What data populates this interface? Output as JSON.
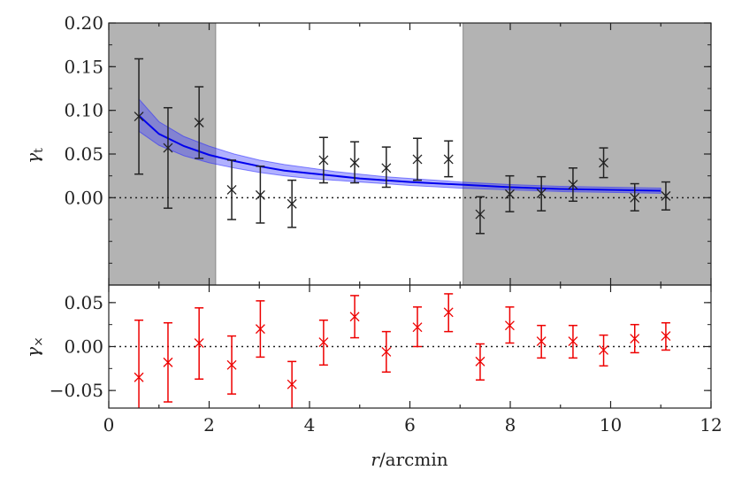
{
  "chart_data": [
    {
      "type": "scatter",
      "panel": "upper",
      "ylabel": "γt",
      "xlabel": "",
      "xlim": [
        0,
        12
      ],
      "ylim": [
        -0.1,
        0.2
      ],
      "yticks": [
        0.0,
        0.05,
        0.1,
        0.15,
        0.2
      ],
      "ytick_labels": [
        "0.00",
        "0.05",
        "0.10",
        "0.15",
        "0.20"
      ],
      "shaded_regions": [
        [
          0,
          2.13
        ],
        [
          7.06,
          12
        ]
      ],
      "reference_line": 0,
      "series": [
        {
          "kind": "points_with_errors",
          "marker": "x",
          "color": "#222222",
          "x": [
            0.6,
            1.18,
            1.8,
            2.45,
            3.02,
            3.65,
            4.28,
            4.9,
            5.53,
            6.15,
            6.77,
            7.4,
            7.99,
            8.62,
            9.25,
            9.86,
            10.48,
            11.1
          ],
          "y": [
            0.093,
            0.057,
            0.086,
            0.009,
            0.003,
            -0.007,
            0.043,
            0.04,
            0.034,
            0.044,
            0.044,
            -0.019,
            0.004,
            0.005,
            0.015,
            0.04,
            0.0,
            0.002
          ],
          "yerr_low": [
            0.027,
            -0.012,
            0.045,
            -0.025,
            -0.029,
            -0.034,
            0.017,
            0.017,
            0.012,
            0.02,
            0.024,
            -0.041,
            -0.016,
            -0.015,
            -0.004,
            0.023,
            -0.015,
            -0.014
          ],
          "yerr_high": [
            0.159,
            0.103,
            0.127,
            0.043,
            0.036,
            0.02,
            0.069,
            0.064,
            0.058,
            0.068,
            0.065,
            0.001,
            0.025,
            0.024,
            0.034,
            0.057,
            0.016,
            0.018
          ]
        },
        {
          "kind": "model_line",
          "color": "#0000ee",
          "x": [
            0.6,
            1.0,
            1.5,
            2.0,
            2.5,
            3.0,
            3.5,
            4.0,
            4.5,
            5.0,
            5.5,
            6.0,
            7.0,
            8.0,
            9.0,
            10.0,
            11.0
          ],
          "y": [
            0.094,
            0.073,
            0.059,
            0.049,
            0.042,
            0.036,
            0.031,
            0.028,
            0.025,
            0.022,
            0.02,
            0.018,
            0.015,
            0.012,
            0.01,
            0.009,
            0.008
          ],
          "band_low": [
            0.076,
            0.06,
            0.048,
            0.04,
            0.034,
            0.029,
            0.025,
            0.022,
            0.02,
            0.018,
            0.016,
            0.014,
            0.011,
            0.009,
            0.007,
            0.006,
            0.005
          ],
          "band_high": [
            0.113,
            0.087,
            0.07,
            0.059,
            0.05,
            0.043,
            0.038,
            0.034,
            0.03,
            0.027,
            0.024,
            0.022,
            0.018,
            0.015,
            0.013,
            0.012,
            0.011
          ]
        }
      ]
    },
    {
      "type": "scatter",
      "panel": "lower",
      "ylabel": "γ×",
      "xlabel": "r/arcmin",
      "xlim": [
        0,
        12
      ],
      "ylim": [
        -0.07,
        0.07
      ],
      "xticks": [
        0,
        2,
        4,
        6,
        8,
        10,
        12
      ],
      "xtick_labels": [
        "0",
        "2",
        "4",
        "6",
        "8",
        "10",
        "12"
      ],
      "yticks": [
        -0.05,
        0.0,
        0.05
      ],
      "ytick_labels": [
        "−0.05",
        "0.00",
        "0.05"
      ],
      "reference_line": 0,
      "series": [
        {
          "kind": "points_with_errors",
          "marker": "x",
          "color": "#ee0000",
          "x": [
            0.6,
            1.18,
            1.8,
            2.45,
            3.02,
            3.65,
            4.28,
            4.9,
            5.53,
            6.15,
            6.77,
            7.4,
            7.99,
            8.62,
            9.25,
            9.86,
            10.48,
            11.1
          ],
          "y": [
            -0.035,
            -0.018,
            0.004,
            -0.021,
            0.02,
            -0.043,
            0.005,
            0.034,
            -0.006,
            0.022,
            0.039,
            -0.017,
            0.024,
            0.006,
            0.006,
            -0.004,
            0.009,
            0.012
          ],
          "yerr_low": [
            -0.1,
            -0.063,
            -0.037,
            -0.054,
            -0.012,
            -0.075,
            -0.021,
            0.01,
            -0.029,
            0.0,
            0.017,
            -0.038,
            0.004,
            -0.013,
            -0.013,
            -0.022,
            -0.007,
            -0.004
          ],
          "yerr_high": [
            0.03,
            0.027,
            0.044,
            0.012,
            0.052,
            -0.017,
            0.03,
            0.058,
            0.017,
            0.045,
            0.06,
            0.003,
            0.045,
            0.024,
            0.024,
            0.013,
            0.025,
            0.027
          ]
        }
      ]
    }
  ]
}
